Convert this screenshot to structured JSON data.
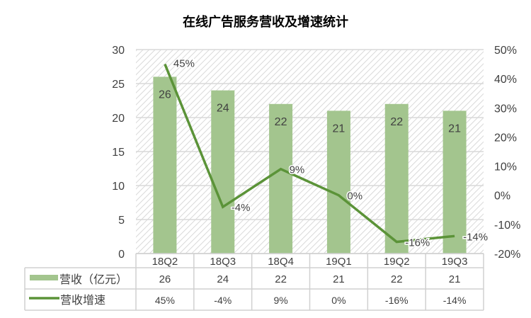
{
  "chart_data": {
    "type": "bar",
    "title": "在线广告服务营收及增速统计",
    "categories": [
      "18Q2",
      "18Q3",
      "18Q4",
      "19Q1",
      "19Q2",
      "19Q3"
    ],
    "series": [
      {
        "name": "营收（亿元）",
        "type": "bar",
        "axis": "left",
        "values": [
          26,
          24,
          22,
          21,
          22,
          21
        ],
        "labels": [
          "26",
          "24",
          "22",
          "21",
          "22",
          "21"
        ],
        "color": "#a3c58e"
      },
      {
        "name": "营收增速",
        "type": "line",
        "axis": "right",
        "values": [
          45,
          -4,
          9,
          0,
          -16,
          -14
        ],
        "labels": [
          "45%",
          "-4%",
          "9%",
          "0%",
          "-16%",
          "-14%"
        ],
        "color": "#5b9338"
      }
    ],
    "left_axis": {
      "ylim": [
        0,
        30
      ],
      "ticks": [
        "0",
        "5",
        "10",
        "15",
        "20",
        "25",
        "30"
      ]
    },
    "right_axis": {
      "ylim": [
        -20,
        50
      ],
      "ticks": [
        "-20%",
        "-10%",
        "0%",
        "10%",
        "20%",
        "30%",
        "40%",
        "50%"
      ]
    },
    "grid": true,
    "legend": "data-table"
  }
}
